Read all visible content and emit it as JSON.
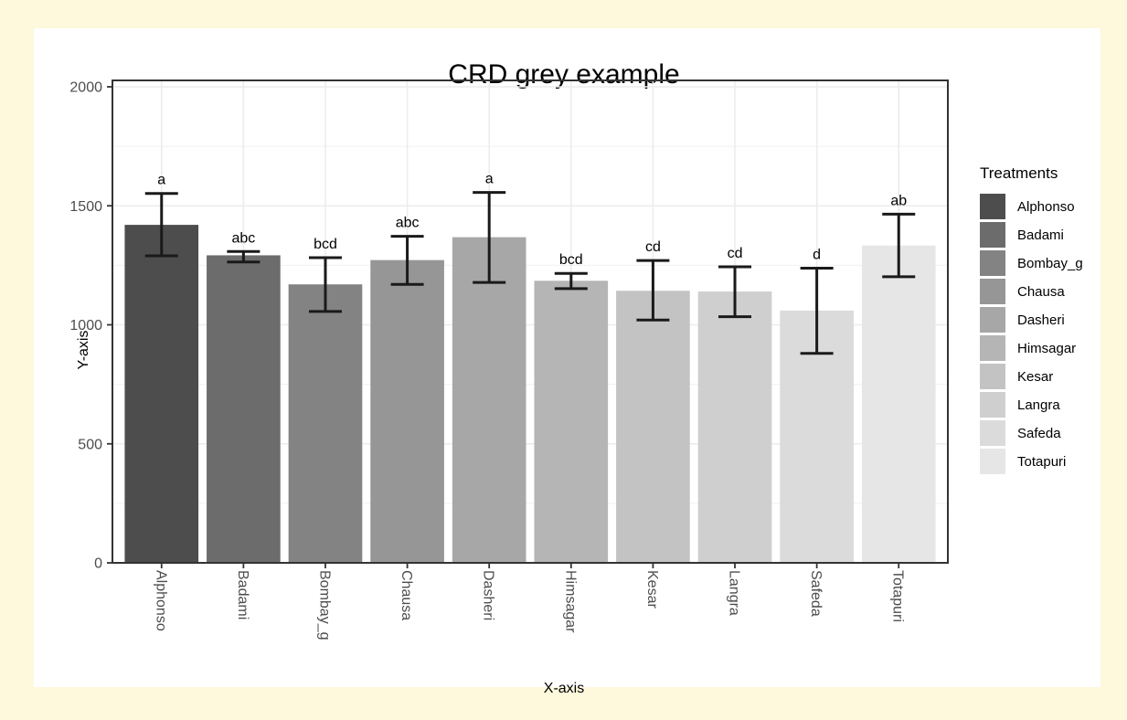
{
  "window": {
    "background": "#FEF8DD",
    "card_background": "#FFFFFF"
  },
  "chart_data": {
    "type": "bar",
    "title": "CRD grey example",
    "xlabel": "X-axis",
    "ylabel": "Y-axis",
    "ylim": [
      0,
      2000
    ],
    "y_major_ticks": [
      0,
      500,
      1000,
      1500,
      2000
    ],
    "y_minor_gridlines": [
      250,
      750,
      1250,
      1750
    ],
    "grid": true,
    "legend_title": "Treatments",
    "legend_position": "right",
    "categories": [
      "Alphonso",
      "Badami",
      "Bombay_g",
      "Chausa",
      "Dasheri",
      "Himsagar",
      "Kesar",
      "Langra",
      "Safeda",
      "Totapuri"
    ],
    "values": [
      1420,
      1292,
      1170,
      1272,
      1368,
      1185,
      1143,
      1140,
      1060,
      1333
    ],
    "error_low": [
      1290,
      1264,
      1056,
      1170,
      1178,
      1152,
      1020,
      1034,
      880,
      1202
    ],
    "error_high": [
      1552,
      1308,
      1282,
      1372,
      1556,
      1216,
      1270,
      1244,
      1238,
      1465
    ],
    "sig_letters": [
      "a",
      "abc",
      "bcd",
      "abc",
      "a",
      "bcd",
      "cd",
      "cd",
      "d",
      "ab"
    ],
    "bar_colors": [
      "#4D4D4D",
      "#6C6C6C",
      "#838383",
      "#969696",
      "#A7A7A7",
      "#B5B5B5",
      "#C3C3C3",
      "#CFCFCF",
      "#DBDBDB",
      "#E6E6E6"
    ],
    "error_bar_color": "#1A1A1A",
    "panel_border_color": "#333333",
    "gridline_major_color": "#ECECEC",
    "gridline_minor_color": "#F3F3F3",
    "axis_text_color": "#4D4D4D"
  }
}
